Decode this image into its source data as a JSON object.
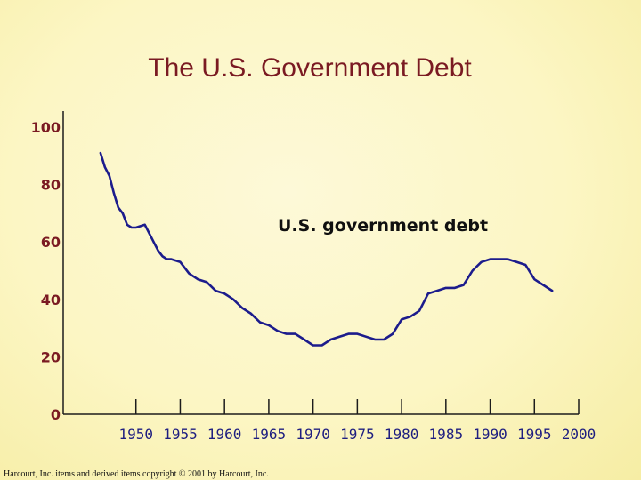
{
  "chart_data": {
    "type": "line",
    "title": "The U.S. Government Debt",
    "xlabel": "",
    "ylabel": "",
    "xlim": [
      1945,
      2000
    ],
    "ylim": [
      0,
      100
    ],
    "x_ticks": [
      "1950",
      "1955",
      "1960",
      "1965",
      "1970",
      "1975",
      "1980",
      "1985",
      "1990",
      "1995",
      "2000"
    ],
    "y_ticks": [
      "0",
      "20",
      "40",
      "60",
      "80",
      "100"
    ],
    "series": [
      {
        "name": "U.S. government debt",
        "color": "#1c1c8c",
        "x": [
          1946,
          1946.5,
          1947,
          1947.5,
          1948,
          1948.5,
          1949,
          1949.5,
          1950,
          1951,
          1952,
          1952.5,
          1953,
          1953.5,
          1954,
          1955,
          1956,
          1957,
          1958,
          1959,
          1960,
          1961,
          1962,
          1963,
          1964,
          1965,
          1966,
          1967,
          1968,
          1969,
          1970,
          1971,
          1972,
          1973,
          1974,
          1975,
          1976,
          1977,
          1978,
          1979,
          1980,
          1981,
          1982,
          1983,
          1984,
          1985,
          1986,
          1987,
          1988,
          1989,
          1990,
          1991,
          1992,
          1993,
          1994,
          1995,
          1996,
          1997
        ],
        "y": [
          91,
          86,
          83,
          77,
          72,
          70,
          66,
          65,
          65,
          66,
          60,
          57,
          55,
          54,
          54,
          53,
          49,
          47,
          46,
          43,
          42,
          40,
          37,
          35,
          32,
          31,
          29,
          28,
          28,
          26,
          24,
          24,
          26,
          27,
          28,
          28,
          27,
          26,
          26,
          28,
          33,
          34,
          36,
          42,
          43,
          44,
          44,
          45,
          50,
          53,
          54,
          54,
          54,
          53,
          52,
          47,
          45,
          43
        ]
      }
    ],
    "annotation": "U.S. government debt",
    "grid": false,
    "legend": "none"
  },
  "footer": {
    "copyright": "Harcourt, Inc. items and derived items copyright © 2001 by Harcourt, Inc."
  }
}
